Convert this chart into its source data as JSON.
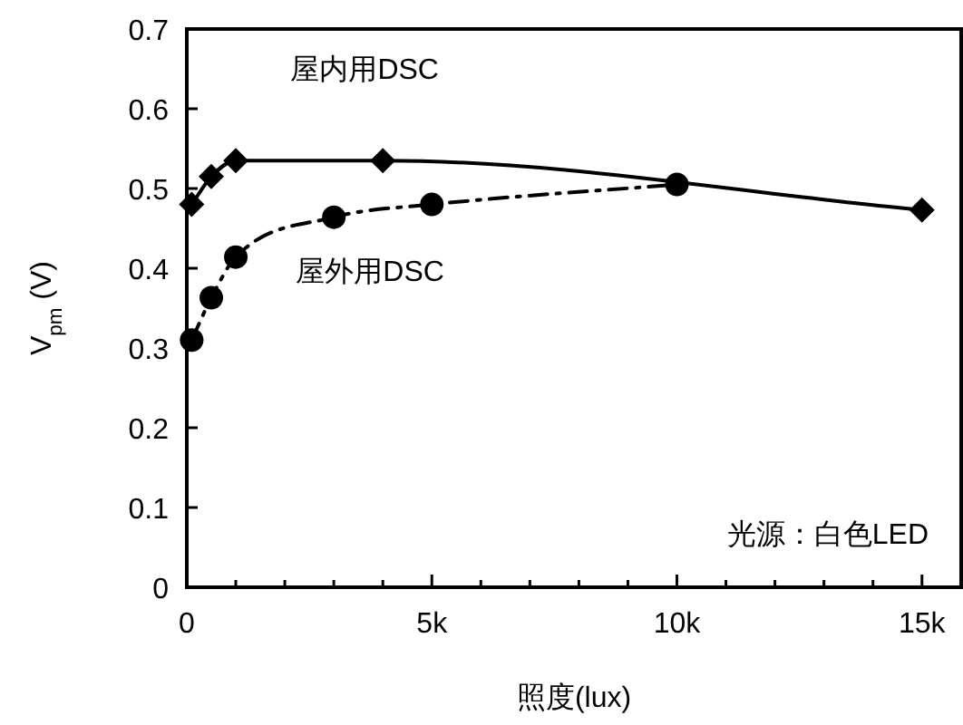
{
  "chart_data": {
    "type": "line",
    "xlabel": "照度(lux)",
    "ylabel": "V$_{pm}$ (V)",
    "xlim": [
      0,
      15800
    ],
    "ylim": [
      0,
      0.7
    ],
    "xticks": [
      0,
      {
        "value": 1000,
        "label": null
      },
      {
        "value": 2000,
        "label": null
      },
      {
        "value": 3000,
        "label": null
      },
      {
        "value": 4000,
        "label": null
      },
      {
        "value": 5000,
        "label": "5k"
      },
      {
        "value": 6000,
        "label": null
      },
      {
        "value": 7000,
        "label": null
      },
      {
        "value": 8000,
        "label": null
      },
      {
        "value": 9000,
        "label": null
      },
      {
        "value": 10000,
        "label": "10k"
      },
      {
        "value": 11000,
        "label": null
      },
      {
        "value": 12000,
        "label": null
      },
      {
        "value": 13000,
        "label": null
      },
      {
        "value": 14000,
        "label": null
      },
      {
        "value": 15000,
        "label": "15k"
      }
    ],
    "yticks": [
      0,
      0.1,
      0.2,
      0.3,
      0.4,
      0.5,
      0.6,
      0.7
    ],
    "grid": false,
    "legend": false,
    "series": [
      {
        "name": "屋内用DSC",
        "color": "#000000",
        "marker": "diamond",
        "line_style": "solid",
        "x": [
          100,
          500,
          1000,
          4000,
          15000
        ],
        "values": [
          0.48,
          0.515,
          0.535,
          0.535,
          0.473
        ]
      },
      {
        "name": "屋外用DSC",
        "color": "#000000",
        "marker": "circle",
        "line_style": "dashed",
        "x": [
          100,
          500,
          1000,
          3000,
          5000,
          10000
        ],
        "values": [
          0.31,
          0.363,
          0.414,
          0.464,
          0.48,
          0.505
        ]
      }
    ],
    "annotations": [
      "光源：白色LED"
    ]
  }
}
